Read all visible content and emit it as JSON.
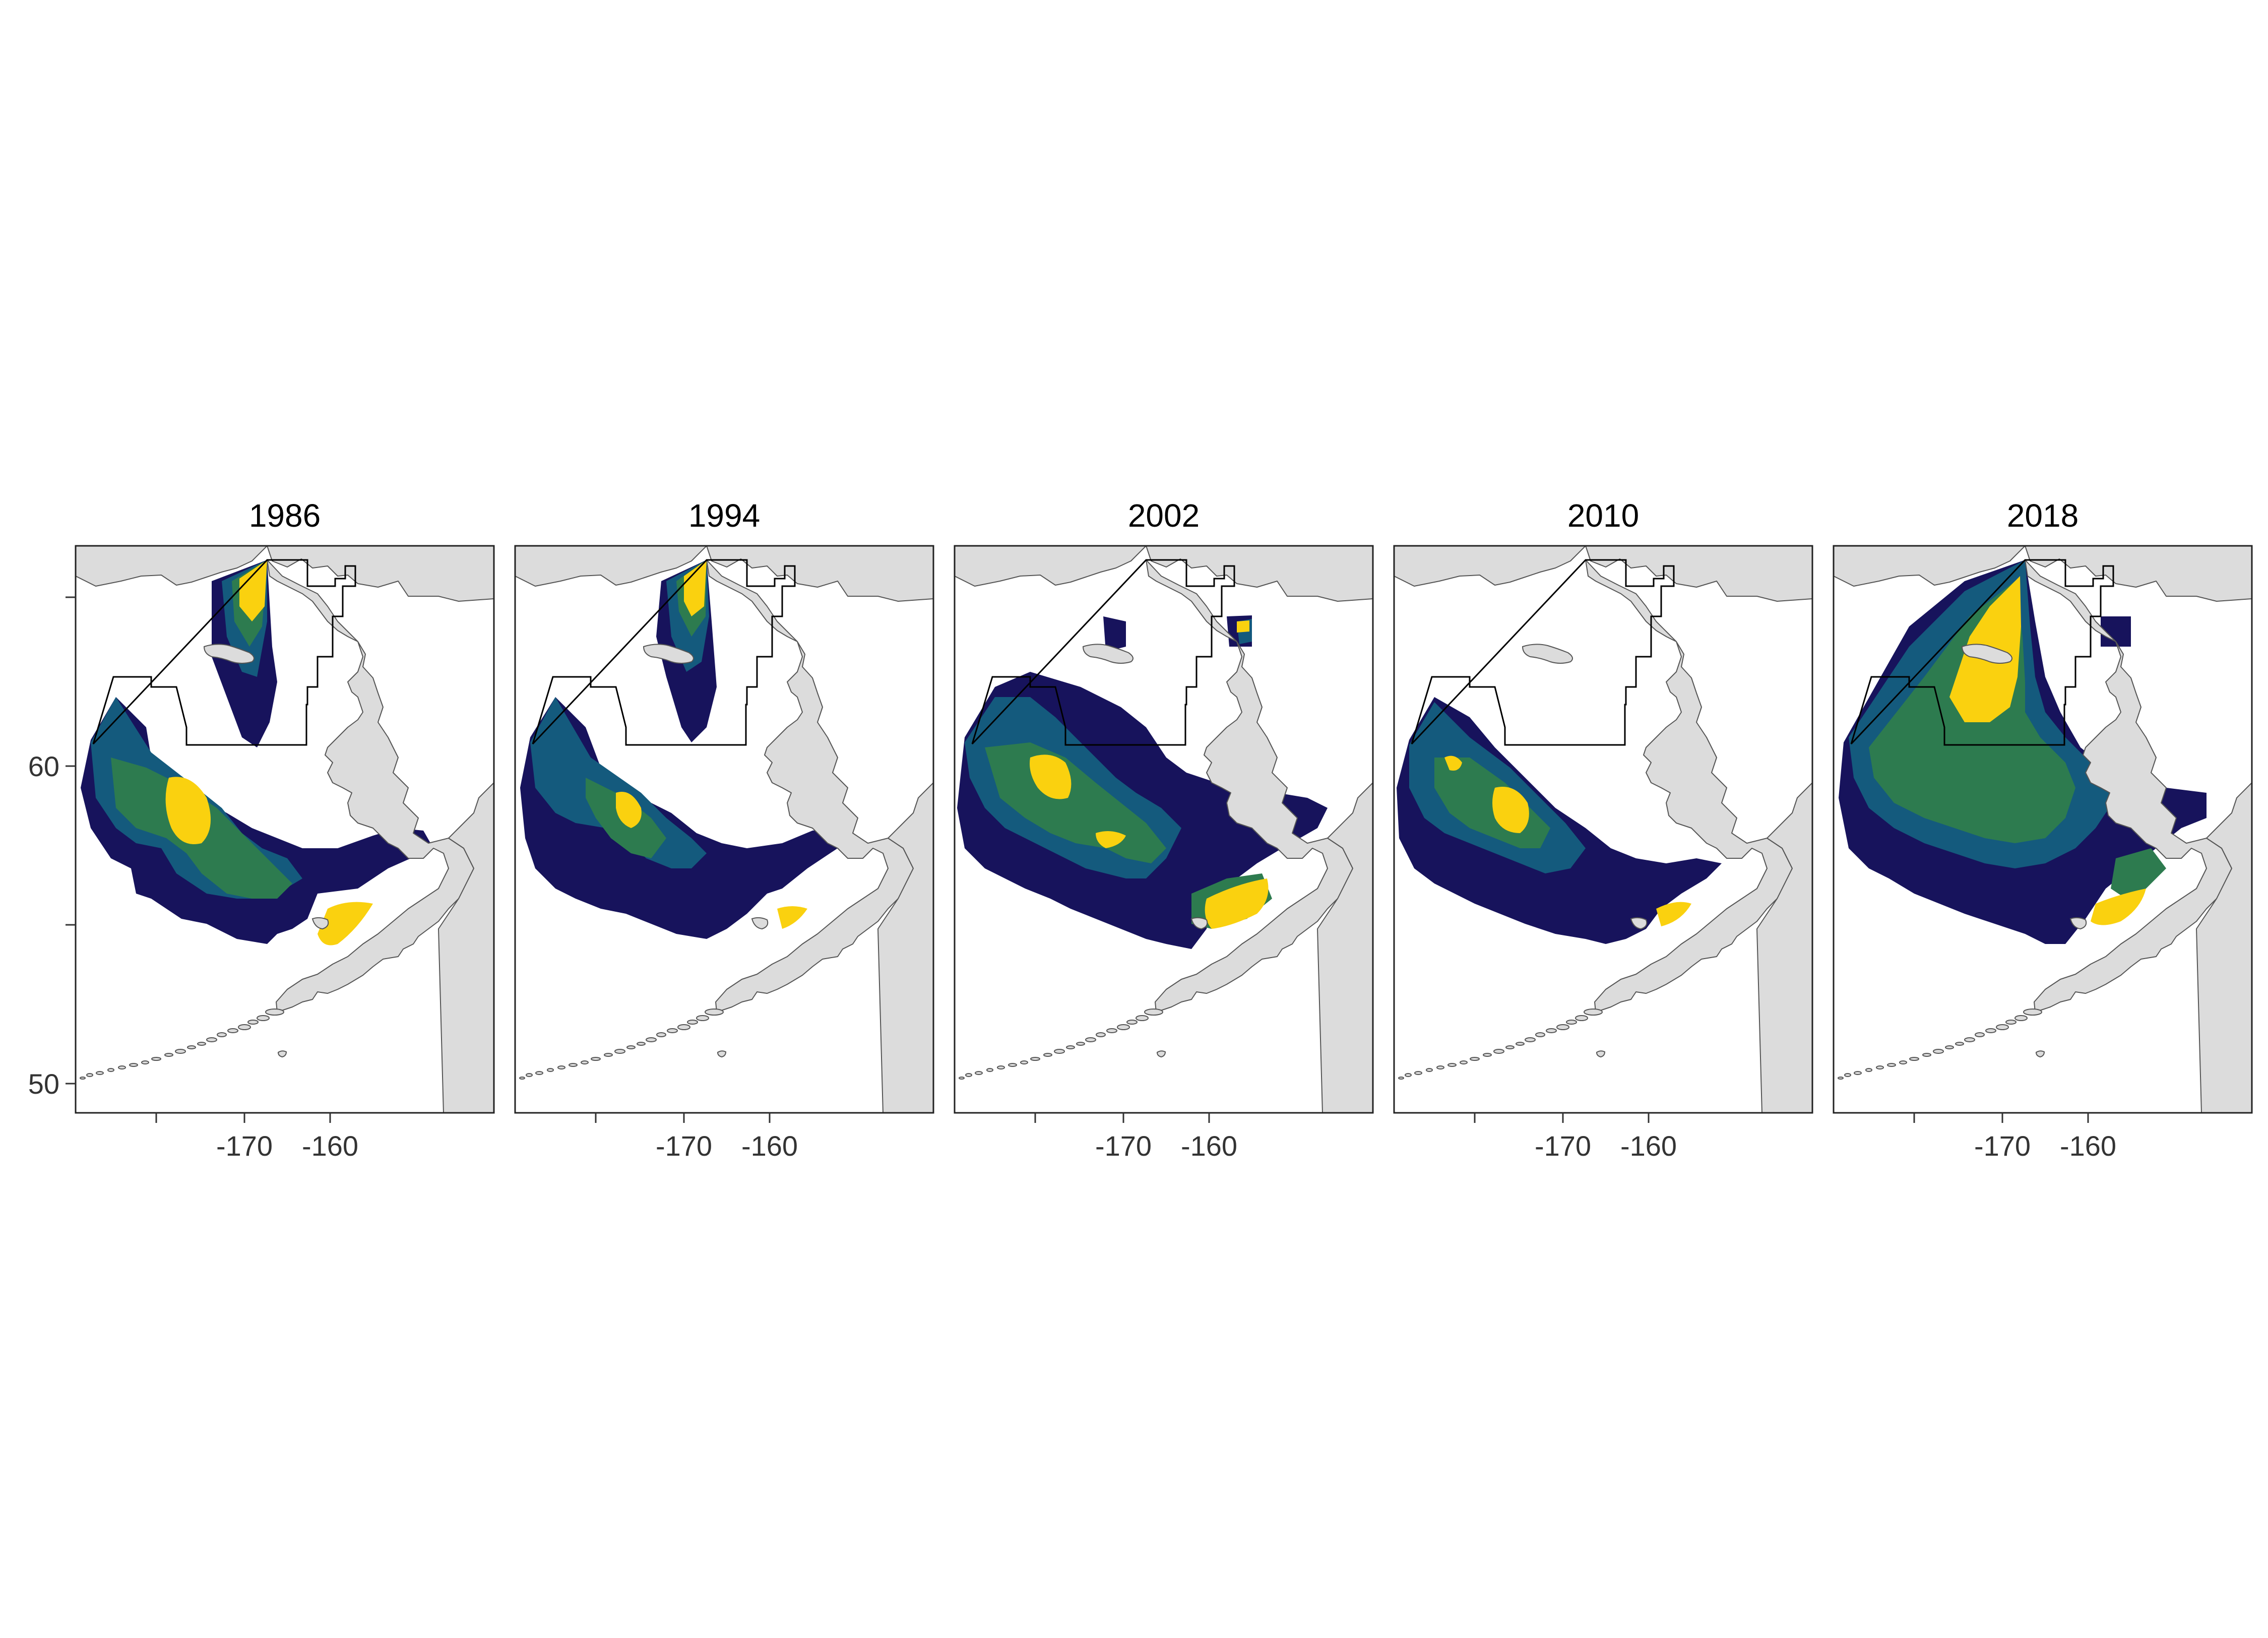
{
  "figure": {
    "panels": [
      {
        "title": "1986",
        "scenario": "p1986"
      },
      {
        "title": "1994",
        "scenario": "p1994"
      },
      {
        "title": "2002",
        "scenario": "p2002"
      },
      {
        "title": "2010",
        "scenario": "p2010"
      },
      {
        "title": "2018",
        "scenario": "p2018"
      }
    ],
    "x_axis": {
      "ticks": [
        "-170",
        "-160"
      ]
    },
    "y_axis": {
      "ticks": [
        "60",
        "50"
      ]
    }
  },
  "colors": {
    "land": "#dcdcdc",
    "coast": "#555555",
    "boundary": "#000000",
    "water": "#ffffff",
    "level_1": "#17135c",
    "level_2": "#145a7d",
    "level_3": "#2d7b4f",
    "level_4": "#fad10f"
  },
  "legend": "none"
}
